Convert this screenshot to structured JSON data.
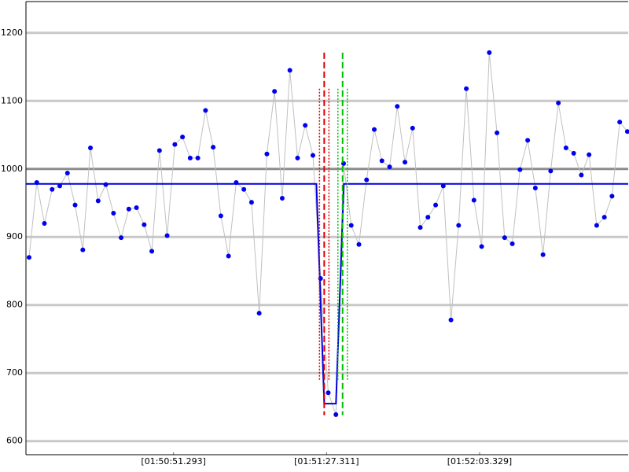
{
  "chart_data": {
    "type": "line",
    "xlim": [
      6616.57,
      6758.3
    ],
    "ylim": [
      580,
      1246
    ],
    "yticks": [
      600,
      700,
      800,
      900,
      1000,
      1100,
      1200
    ],
    "xticks": [
      {
        "value": 6651.293,
        "label": "[01:50:51.293]"
      },
      {
        "value": 6687.311,
        "label": "[01:51:27.311]"
      },
      {
        "value": 6723.329,
        "label": "[01:52:03.329]"
      }
    ],
    "grid": true,
    "reference_line": 1000,
    "series": [
      {
        "color": "#0000ee",
        "markers": true,
        "line_color": "#c0c0c0",
        "x": [
          6617.31,
          6619.12,
          6620.92,
          6622.73,
          6624.53,
          6626.34,
          6628.14,
          6629.95,
          6631.75,
          6633.56,
          6635.36,
          6637.17,
          6638.97,
          6640.78,
          6642.58,
          6644.39,
          6646.19,
          6648.0,
          6649.8,
          6651.61,
          6653.41,
          6655.22,
          6657.02,
          6658.83,
          6660.63,
          6662.44,
          6664.24,
          6666.05,
          6667.85,
          6669.66,
          6671.46,
          6673.27,
          6675.07,
          6676.88,
          6678.68,
          6680.49,
          6682.29,
          6684.1,
          6685.9,
          6687.71,
          6689.51,
          6691.32,
          6693.12,
          6694.93,
          6696.73,
          6698.54,
          6700.34,
          6702.15,
          6703.95,
          6705.76,
          6707.56,
          6709.37,
          6711.17,
          6712.98,
          6714.78,
          6716.59,
          6718.39,
          6720.2,
          6722.0,
          6723.81,
          6725.61,
          6727.42,
          6729.22,
          6731.03,
          6732.83,
          6734.64,
          6736.44,
          6738.25,
          6740.05,
          6741.86,
          6743.66,
          6745.47,
          6747.27,
          6749.08,
          6750.88,
          6752.69,
          6754.49,
          6756.3,
          6758.1
        ],
        "values": [
          870,
          980,
          920,
          970,
          975,
          994,
          947,
          881,
          1031,
          953,
          977,
          935,
          899,
          941,
          943,
          918,
          879,
          1027,
          902,
          1036,
          1047,
          1016,
          1016,
          1086,
          1032,
          931,
          872,
          980,
          970,
          951,
          788,
          1022,
          1114,
          957,
          1145,
          1016,
          1064,
          1020,
          839,
          671,
          639,
          1008,
          917,
          889,
          984,
          1058,
          1012,
          1003,
          1092,
          1010,
          1060,
          914,
          929,
          947,
          975,
          778,
          917,
          1118,
          954,
          886,
          1171,
          1053,
          899,
          890,
          999,
          1042,
          972,
          874,
          997,
          1097,
          1031,
          1023,
          991,
          1021,
          917,
          929,
          960,
          1069,
          1055
        ]
      },
      {
        "color": "#0000dd",
        "markers": false,
        "line_color": "#0000dd",
        "x": [
          6616.57,
          6684.91,
          6686.76,
          6689.53,
          6691.38,
          6758.3
        ],
        "values": [
          978,
          978,
          655,
          655,
          978,
          978
        ]
      }
    ],
    "vlines": [
      {
        "x": 6685.65,
        "ymin": 690,
        "ymax": 1118,
        "color": "#e00000",
        "style": "dotted"
      },
      {
        "x": 6686.76,
        "ymin": 638,
        "ymax": 1171,
        "color": "#e00000",
        "style": "dashed"
      },
      {
        "x": 6687.87,
        "ymin": 690,
        "ymax": 1118,
        "color": "#e00000",
        "style": "dotted"
      },
      {
        "x": 6689.98,
        "ymin": 690,
        "ymax": 1118,
        "color": "#00c000",
        "style": "dotted"
      },
      {
        "x": 6691.09,
        "ymin": 638,
        "ymax": 1171,
        "color": "#00c000",
        "style": "dashed"
      },
      {
        "x": 6692.2,
        "ymin": 690,
        "ymax": 1118,
        "color": "#00c000",
        "style": "dotted"
      }
    ]
  }
}
